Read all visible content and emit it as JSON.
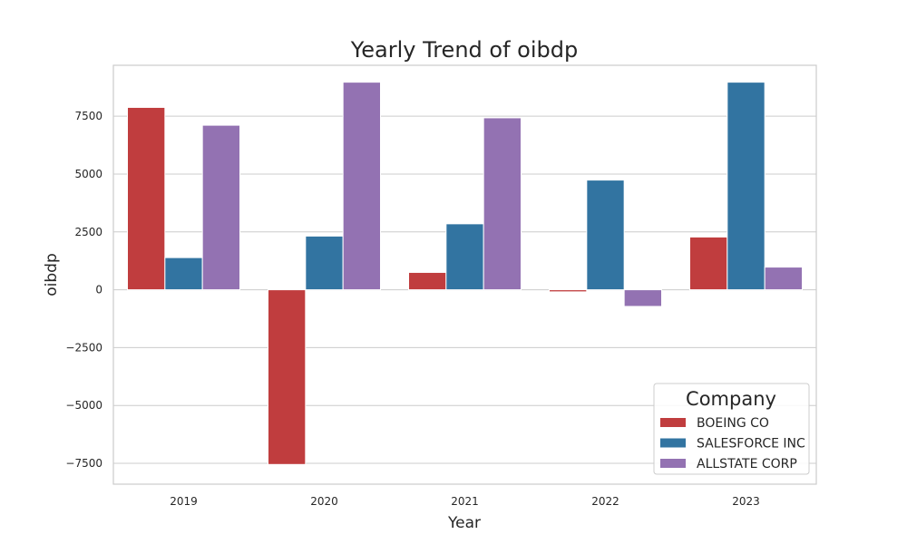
{
  "chart_data": {
    "type": "bar",
    "title": "Yearly Trend of oibdp",
    "xlabel": "Year",
    "ylabel": "oibdp",
    "categories": [
      "2019",
      "2020",
      "2021",
      "2022",
      "2023"
    ],
    "series": [
      {
        "name": "BOEING CO",
        "color": "#c03d3e",
        "values": [
          7880,
          -7550,
          750,
          -90,
          2280
        ]
      },
      {
        "name": "SALESFORCE INC",
        "color": "#3274a1",
        "values": [
          1390,
          2320,
          2850,
          4740,
          8970
        ]
      },
      {
        "name": "ALLSTATE CORP",
        "color": "#9372b2",
        "values": [
          7110,
          8970,
          7430,
          -720,
          980
        ]
      }
    ],
    "ylim": [
      -8400,
      9700
    ],
    "yticks": [
      -7500,
      -5000,
      -2500,
      0,
      2500,
      5000,
      7500
    ],
    "ytick_labels": [
      "−7500",
      "−5000",
      "−2500",
      "0",
      "2500",
      "5000",
      "7500"
    ],
    "grid": true,
    "legend": {
      "title": "Company",
      "placement": "bottom-right"
    }
  }
}
